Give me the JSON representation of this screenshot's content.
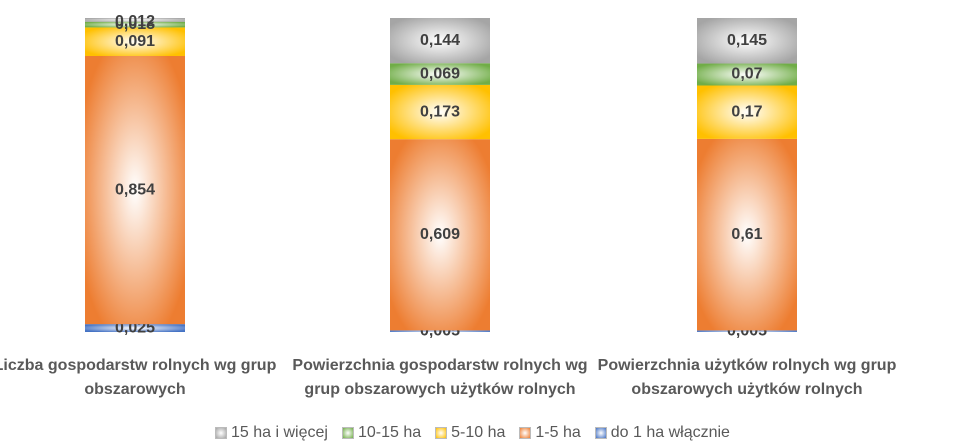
{
  "chart_data": {
    "type": "stacked_bar",
    "categories": [
      "Liczba gospodarstw rolnych wg grup obszarowych",
      "Powierzchnia gospodarstw rolnych wg grup obszarowych użytków rolnych",
      "Powierzchnia użytków rolnych wg grup obszarowych użytków rolnych"
    ],
    "series": [
      {
        "name": "do 1 ha włącznie",
        "color": "#4472c4",
        "values": [
          0.025,
          0.005,
          0.005
        ],
        "value_labels": [
          "0,025",
          "0,005",
          "0,005"
        ]
      },
      {
        "name": "1-5 ha",
        "color": "#ed7d31",
        "values": [
          0.854,
          0.609,
          0.61
        ],
        "value_labels": [
          "0,854",
          "0,609",
          "0,61"
        ]
      },
      {
        "name": "5-10 ha",
        "color": "#ffc000",
        "values": [
          0.091,
          0.173,
          0.17
        ],
        "value_labels": [
          "0,091",
          "0,173",
          "0,17"
        ]
      },
      {
        "name": "10-15 ha",
        "color": "#70ad47",
        "values": [
          0.018,
          0.069,
          0.07
        ],
        "value_labels": [
          "0,018",
          "0,069",
          "0,07"
        ]
      },
      {
        "name": "15 ha i więcej",
        "color": "#a5a5a5",
        "values": [
          0.012,
          0.144,
          0.145
        ],
        "value_labels": [
          "0,012",
          "0,144",
          "0,145"
        ]
      }
    ],
    "ylim": [
      0,
      1
    ],
    "legend": "bottom"
  }
}
